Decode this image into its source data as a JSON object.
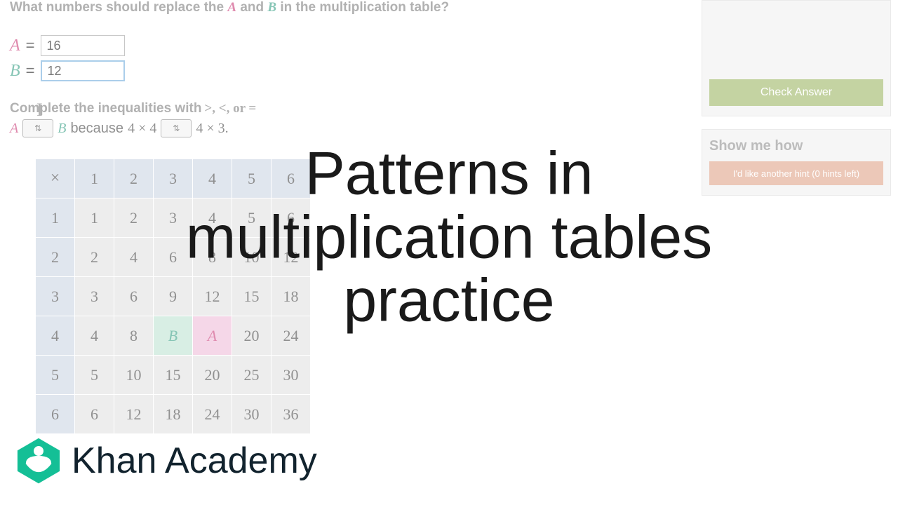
{
  "colors": {
    "var_a": "#d94a87",
    "var_b": "#3fa98f",
    "cell_a_bg": "#f5c1de",
    "cell_b_bg": "#c1e6d6",
    "header_bg": "#cfd9e8",
    "body_bg": "#e4e4e4",
    "check_btn": "#a4be6a",
    "hint_btn": "#e8aa8f",
    "panel_bg": "#f2f2f2",
    "khan_green": "#14bf96",
    "khan_navy": "#0a2a3b"
  },
  "question": {
    "line1_prefix": "What numbers should replace the ",
    "var_a": "A",
    "line1_mid": " and ",
    "var_b": "B",
    "line1_suffix": " in the multiplication table?"
  },
  "inputs": {
    "a_label": "A",
    "a_eq": "=",
    "a_value": "16",
    "b_label": "B",
    "b_eq": "=",
    "b_value": "12"
  },
  "inequality": {
    "prompt_prefix": "Complete the inequalities with ",
    "symbols": ">, <, or =",
    "row_a": "A",
    "row_b": "B",
    "because": "because",
    "expr1": "4 × 4",
    "expr2": "4 × 3."
  },
  "table": {
    "corner": "×",
    "col_headers": [
      "1",
      "2",
      "3",
      "4",
      "5",
      "6"
    ],
    "row_headers": [
      "1",
      "2",
      "3",
      "4",
      "5",
      "6"
    ],
    "rows": [
      [
        "1",
        "2",
        "3",
        "4",
        "5",
        "6"
      ],
      [
        "2",
        "4",
        "6",
        "8",
        "10",
        "12"
      ],
      [
        "3",
        "6",
        "9",
        "12",
        "15",
        "18"
      ],
      [
        "4",
        "8",
        "B",
        "A",
        "20",
        "24"
      ],
      [
        "5",
        "10",
        "15",
        "20",
        "25",
        "30"
      ],
      [
        "6",
        "12",
        "18",
        "24",
        "30",
        "36"
      ]
    ],
    "special": {
      "B": {
        "r": 3,
        "c": 2
      },
      "A": {
        "r": 3,
        "c": 3
      }
    }
  },
  "sidebar": {
    "check_label": "Check Answer",
    "hint_title": "Show me how",
    "hint_btn": "I'd like another hint (0 hints left)"
  },
  "overlay": {
    "title_line1": "Patterns in",
    "title_line2": "multiplication tables",
    "title_line3": "practice"
  },
  "brand": {
    "name": "Khan Academy"
  }
}
